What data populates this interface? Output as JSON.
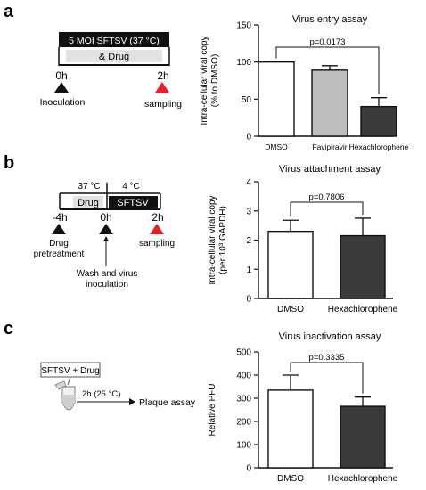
{
  "panel_labels": [
    "a",
    "b",
    "c"
  ],
  "colors": {
    "red_triangle": "#e8202a",
    "black_triangle": "#111111",
    "bar_white": "#ffffff",
    "bar_gray": "#bdbdbd",
    "bar_dark": "#3a3a3a",
    "gray_box": "#e2e2e2"
  },
  "schematic_a": {
    "condition_label": "5 MOI SFTSV (37 °C)",
    "drug_label": "& Drug",
    "time_start": "0h",
    "time_end": "2h",
    "event_start": "Inoculation",
    "event_end": "sampling"
  },
  "schematic_b": {
    "temp_left": "37 °C",
    "temp_right": "4 °C",
    "drug_label": "Drug",
    "virus_label": "SFTSV",
    "time_pre": "-4h",
    "time_zero": "0h",
    "time_end": "2h",
    "event_pre_line1": "Drug",
    "event_pre_line2": "pretreatment",
    "event_end": "sampling",
    "event_wash_line1": "Wash and virus",
    "event_wash_line2": "inoculation"
  },
  "schematic_c": {
    "tube_label": "SFTSV + Drug",
    "incubation": "2h (25 °C)",
    "assay": "Plaque assay"
  },
  "chart_data": [
    {
      "type": "bar",
      "title": "Virus entry assay",
      "ylabel": "Intra-cellular viral copy\n(% to DMSO)",
      "categories": [
        "DMSO",
        "Favipiravir",
        "Hexachlorophene"
      ],
      "values": [
        100,
        89,
        40
      ],
      "errors": [
        0,
        6,
        12
      ],
      "ylim": [
        0,
        150
      ],
      "yticks": [
        0,
        50,
        100,
        150
      ],
      "annotation": "p=0.0173",
      "annotation_pair": [
        0,
        2
      ]
    },
    {
      "type": "bar",
      "title": "Virus attachment assay",
      "ylabel": "Intra-cellular viral copy\n(per 10³ GAPDH)",
      "categories": [
        "DMSO",
        "Hexachlorophene"
      ],
      "values": [
        2.3,
        2.15
      ],
      "errors": [
        0.38,
        0.6
      ],
      "ylim": [
        0,
        4
      ],
      "yticks": [
        0,
        1,
        2,
        3,
        4
      ],
      "annotation": "p=0.7806",
      "annotation_pair": [
        0,
        1
      ]
    },
    {
      "type": "bar",
      "title": "Virus inactivation assay",
      "ylabel": "Relative PFU",
      "categories": [
        "DMSO",
        "Hexachlorophene"
      ],
      "values": [
        335,
        265
      ],
      "errors": [
        65,
        40
      ],
      "ylim": [
        0,
        500
      ],
      "yticks": [
        0,
        100,
        200,
        300,
        400,
        500
      ],
      "annotation": "p=0.3335",
      "annotation_pair": [
        0,
        1
      ]
    }
  ]
}
